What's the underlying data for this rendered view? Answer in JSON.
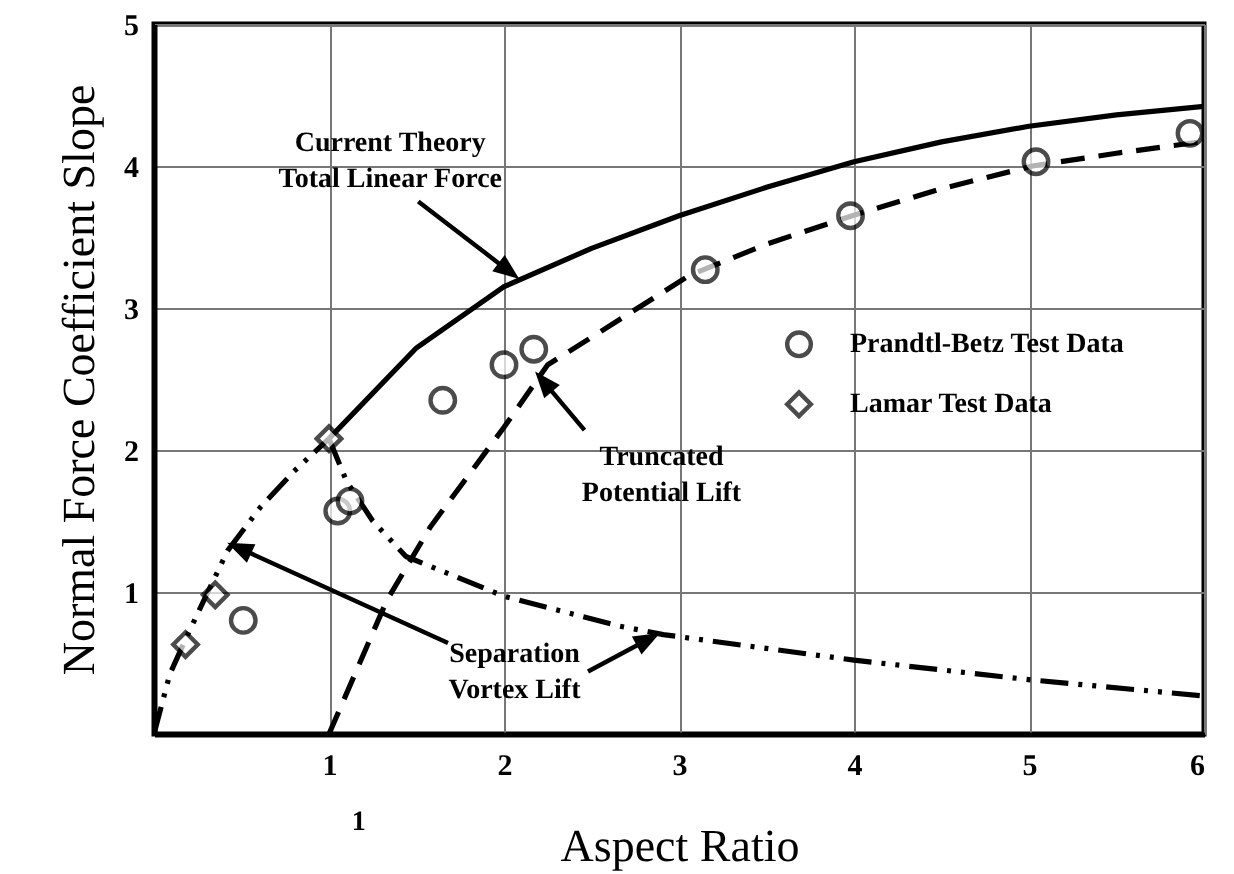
{
  "chart_data": {
    "type": "line",
    "xlabel": "Aspect Ratio",
    "ylabel": "Normal Force Coefficient Slope",
    "xlim": [
      0,
      6
    ],
    "ylim": [
      0,
      5
    ],
    "xticks": [
      1,
      2,
      3,
      4,
      5,
      6
    ],
    "yticks": [
      1,
      2,
      3,
      4,
      5
    ],
    "grid": true,
    "legend": "right",
    "annotations": [
      {
        "text": "Current Theory\nTotal Linear Force",
        "x": 2.06,
        "y": 3.23
      },
      {
        "text": "Truncated\nPotential Lift",
        "x": 2.2,
        "y": 2.52
      },
      {
        "text": "Separation\nVortex Lift",
        "x": 2.86,
        "y": 0.69
      },
      "1"
    ],
    "series": [
      {
        "color": "#000000",
        "line_style": "solid",
        "x": [
          1,
          1.5,
          2,
          2.5,
          3,
          3.5,
          4,
          4.5,
          5,
          5.5,
          6
        ],
        "values": [
          2.08,
          2.72,
          3.15,
          3.42,
          3.65,
          3.85,
          4.03,
          4.17,
          4.28,
          4.36,
          4.42
        ]
      },
      {
        "color": "#000000",
        "line_style": "dotted",
        "x": [
          0,
          0.09,
          0.2,
          0.42,
          0.61,
          0.8,
          1
        ],
        "values": [
          0,
          0.42,
          0.72,
          1.29,
          1.6,
          1.85,
          2.08
        ]
      },
      {
        "color": "#000000",
        "line_style": "dashed",
        "x": [
          1,
          1.33,
          1.58,
          2,
          2.25,
          2.47,
          3.06,
          3.5,
          3.99,
          4.5,
          5.02,
          5.5,
          5.98
        ],
        "values": [
          0,
          0.94,
          1.46,
          2.16,
          2.6,
          2.77,
          3.23,
          3.45,
          3.65,
          3.84,
          4.0,
          4.09,
          4.17
        ]
      },
      {
        "color": "#000000",
        "line_style": "dotted",
        "x": [
          1,
          1.1,
          1.25,
          1.44,
          2,
          2.66,
          2.91,
          4,
          5.02,
          5.98
        ],
        "values": [
          2.08,
          1.78,
          1.5,
          1.25,
          0.97,
          0.76,
          0.7,
          0.52,
          0.38,
          0.27
        ]
      },
      {
        "type": "scatter",
        "name": "Prandtl-Betz Test Data",
        "color": "#000000",
        "marker": "circle",
        "x": [
          0.51,
          1.05,
          1.12,
          1.65,
          2.0,
          2.17,
          3.15,
          3.98,
          5.04,
          5.92
        ],
        "values": [
          0.8,
          1.57,
          1.64,
          2.35,
          2.6,
          2.71,
          3.27,
          3.65,
          4.03,
          4.23
        ]
      },
      {
        "type": "scatter",
        "name": "Lamar Test Data",
        "color": "#000000",
        "marker": "diamond",
        "x": [
          0.18,
          0.35,
          1.0
        ],
        "values": [
          0.63,
          0.98,
          2.08
        ]
      }
    ]
  }
}
